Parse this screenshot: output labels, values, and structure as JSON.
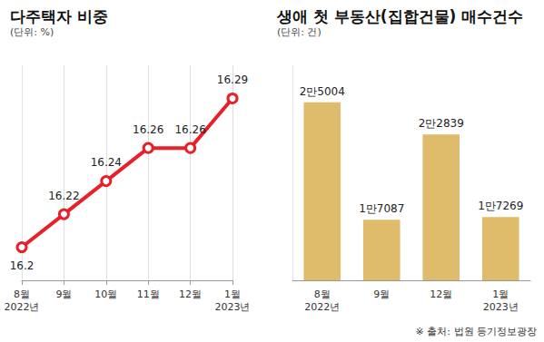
{
  "chart_data": [
    {
      "type": "line",
      "title": "다주택자 비중",
      "subtitle": "(단위: %)",
      "categories": [
        "8월\n2022년",
        "9월",
        "10월",
        "11월",
        "12월",
        "1월\n2023년"
      ],
      "values": [
        16.2,
        16.22,
        16.24,
        16.26,
        16.26,
        16.29
      ],
      "color": "#e8202a",
      "marker": "circle",
      "ylim": [
        16.18,
        16.31
      ],
      "data_labels": true,
      "tick_labels": "x",
      "grid": true
    },
    {
      "type": "bar",
      "title": "생애 첫 부동산(집합건물) 매수건수",
      "subtitle": "(단위: 건)",
      "categories": [
        "8월\n2022년",
        "9월",
        "12월",
        "1월\n2023년"
      ],
      "values": [
        25004,
        17087,
        22839,
        17269
      ],
      "value_labels": [
        "2만5004",
        "1만7087",
        "2만2839",
        "1만7269"
      ],
      "color": "#dfbb6c",
      "ylim": [
        13000,
        27500
      ],
      "data_labels": true,
      "tick_labels": "x",
      "grid": false,
      "annotations": [
        "※ 출처: 법원 등기정보광장"
      ]
    }
  ]
}
